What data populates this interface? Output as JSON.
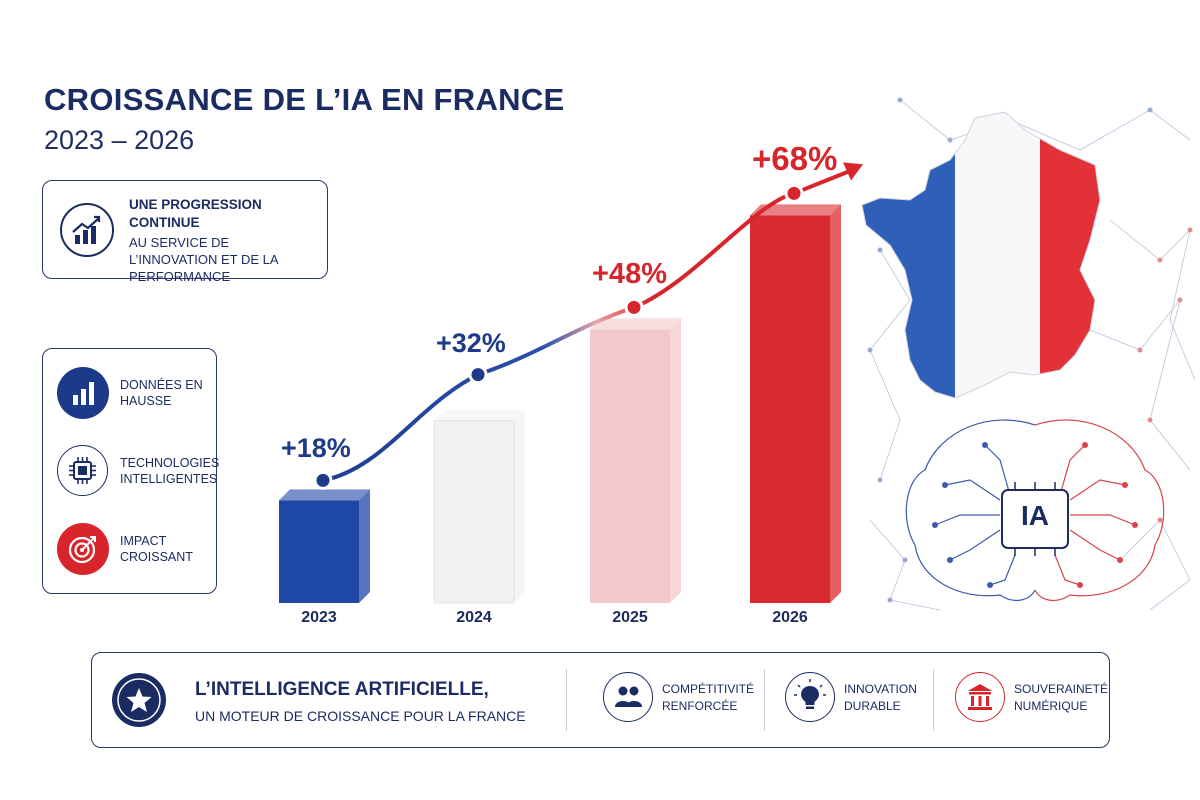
{
  "header": {
    "title": "CROISSANCE DE L’IA EN FRANCE",
    "subtitle": "2023 – 2026"
  },
  "progression_card": {
    "title": "UNE PROGRESSION CONTINUE",
    "subtitle": "AU SERVICE DE L’INNOVATION ET DE LA PERFORMANCE",
    "icon": "growth-chart-icon"
  },
  "features": [
    {
      "label": "DONNÉES EN HAUSSE",
      "icon": "bar-chart-icon",
      "color": "#1d3a8a"
    },
    {
      "label": "TECHNOLOGIES INTELLIGENTES",
      "icon": "chip-icon",
      "color": "#1b2c63"
    },
    {
      "label": "IMPACT CROISSANT",
      "icon": "target-icon",
      "color": "#d8242b"
    }
  ],
  "chart_data": {
    "type": "bar",
    "categories": [
      "2023",
      "2024",
      "2025",
      "2026"
    ],
    "values": [
      18,
      32,
      48,
      68
    ],
    "data_labels": [
      "+18%",
      "+32%",
      "+48%",
      "+68%"
    ],
    "bar_colors": [
      "#1f47a8",
      "#f2f2f4",
      "#f3c8ca",
      "#d92a2f"
    ],
    "label_colors": [
      "#1e3a8a",
      "#1e3a8a",
      "#d8242b",
      "#d8242b"
    ],
    "trend_line": true,
    "title": "",
    "xlabel": "",
    "ylabel": ""
  },
  "illustration": {
    "chip_label": "IA",
    "flag_colors": [
      "#2f5fb8",
      "#ffffff",
      "#e33138"
    ]
  },
  "footer": {
    "title": "L’INTELLIGENCE ARTIFICIELLE,",
    "subtitle": "UN MOTEUR DE CROISSANCE POUR LA FRANCE",
    "icon": "star-icon",
    "items": [
      {
        "label": "COMPÉTITIVITÉ RENFORCÉE",
        "icon": "people-icon"
      },
      {
        "label": "INNOVATION DURABLE",
        "icon": "lightbulb-icon"
      },
      {
        "label": "SOUVERAINETÉ NUMÉRIQUE",
        "icon": "institution-icon"
      }
    ]
  }
}
